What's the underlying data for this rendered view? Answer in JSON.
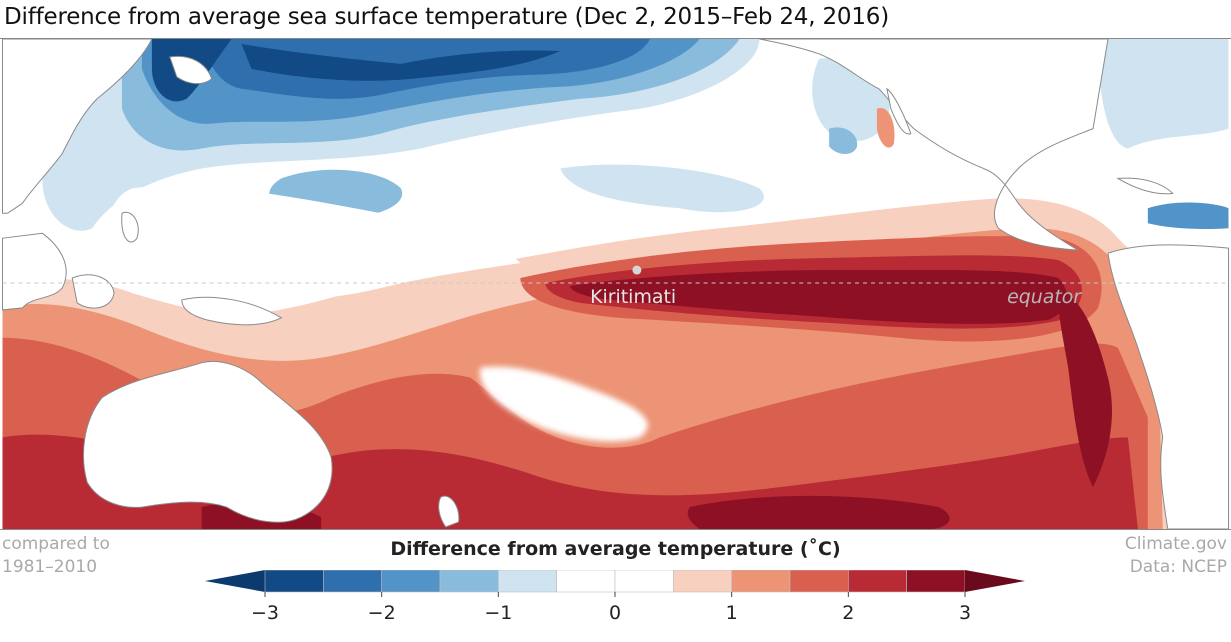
{
  "title": "Difference from average sea surface temperature (Dec 2, 2015–Feb 24, 2016)",
  "map": {
    "labels": {
      "kiritimati": "Kiritimati",
      "equator": "equator"
    },
    "colors": {
      "land": "#ffffff",
      "coast": "#8a8a8a",
      "equator_line": "#c9c9c9",
      "marker": "#d6d6d6",
      "label_light": "#e6e6e6",
      "label_grey": "#b7b7b7"
    }
  },
  "footer": {
    "compared_line1": "compared to",
    "compared_line2": "1981–2010",
    "source_line1": "Climate.gov",
    "source_line2": "Data: NCEP"
  },
  "legend": {
    "title": "Difference from average temperature (˚C)",
    "ticks": [
      {
        "value": -3,
        "label": "−3"
      },
      {
        "value": -2,
        "label": "−2"
      },
      {
        "value": -1,
        "label": "−1"
      },
      {
        "value": 0,
        "label": "0"
      },
      {
        "value": 1,
        "label": "1"
      },
      {
        "value": 2,
        "label": "2"
      },
      {
        "value": 3,
        "label": "3"
      }
    ],
    "range": [
      -3,
      3
    ],
    "step": 0.5,
    "under_color": "#0b3a6e",
    "over_color": "#6a0a1c",
    "colors": [
      "#124a85",
      "#2f6fae",
      "#5294c8",
      "#89bbdd",
      "#cfe3f0",
      "#ffffff",
      "#ffffff",
      "#f8d0c0",
      "#ec9475",
      "#d9604f",
      "#b82a34",
      "#8e1024"
    ]
  }
}
